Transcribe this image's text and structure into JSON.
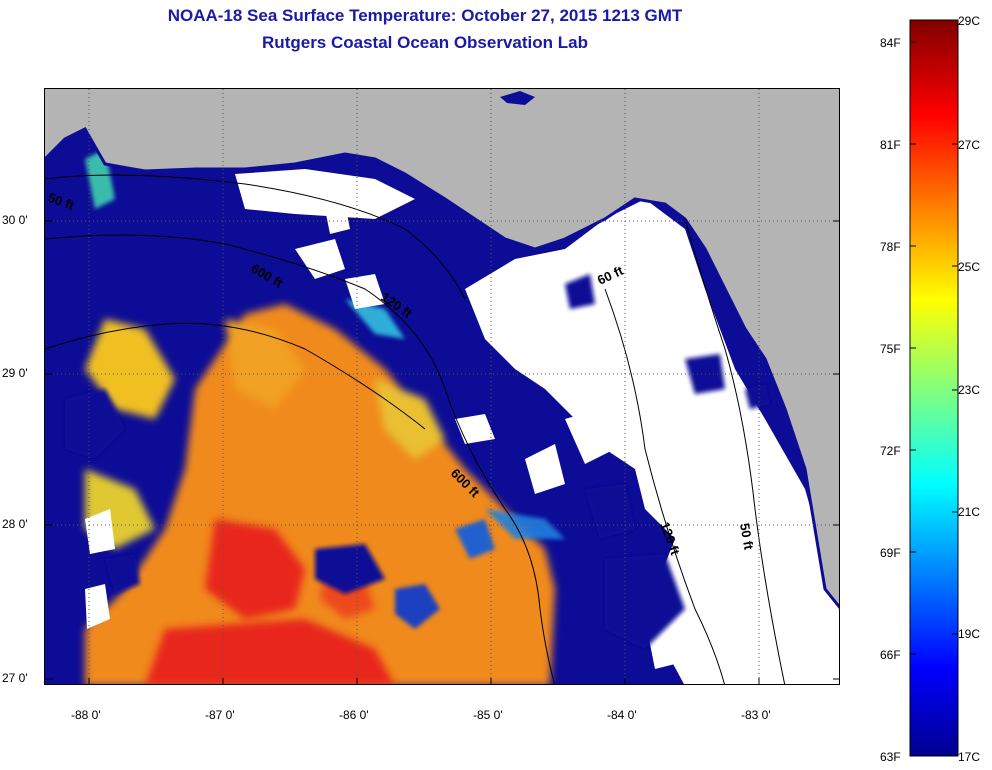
{
  "header": {
    "title": "NOAA-18 Sea Surface Temperature:  October 27, 2015 1213 GMT",
    "subtitle": "Rutgers Coastal Ocean Observation Lab"
  },
  "axes": {
    "lat_labels": [
      "30 0'",
      "29 0'",
      "28 0'",
      "27 0'"
    ],
    "lon_labels": [
      "-88 0'",
      "-87 0'",
      "-86 0'",
      "-85 0'",
      "-84 0'",
      "-83 0'"
    ]
  },
  "depth_contours": {
    "labels": [
      "50 ft",
      "600 ft",
      "120 ft",
      "60 ft",
      "600 ft",
      "120 ft",
      "50 ft"
    ]
  },
  "colorbar": {
    "fahrenheit_labels": [
      "84F",
      "81F",
      "78F",
      "75F",
      "72F",
      "69F",
      "66F",
      "63F"
    ],
    "celsius_labels": [
      "29C",
      "27C",
      "25C",
      "23C",
      "21C",
      "19C",
      "17C"
    ],
    "range_c": [
      17,
      29
    ],
    "range_f": [
      63,
      84
    ]
  },
  "colors": {
    "title": "#1a1aa8",
    "land": "#b4b4b4",
    "cold_water": "#0c0c96",
    "warm_water": "#f08a1e",
    "hot_water": "#e8281c",
    "cloud": "#ffffff"
  }
}
